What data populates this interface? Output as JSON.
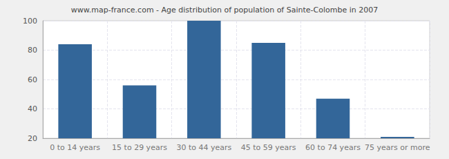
{
  "chart_data": {
    "type": "bar",
    "title": "www.map-france.com - Age distribution of population of Sainte-Colombe in 2007",
    "categories": [
      "0 to 14 years",
      "15 to 29 years",
      "30 to 44 years",
      "45 to 59 years",
      "60 to 74 years",
      "75 years or more"
    ],
    "values": [
      84,
      56,
      100,
      85,
      47,
      21
    ],
    "color": "#336699",
    "ylim": [
      20,
      100
    ],
    "yticks": [
      20,
      40,
      60,
      80,
      100
    ],
    "grid": true
  }
}
